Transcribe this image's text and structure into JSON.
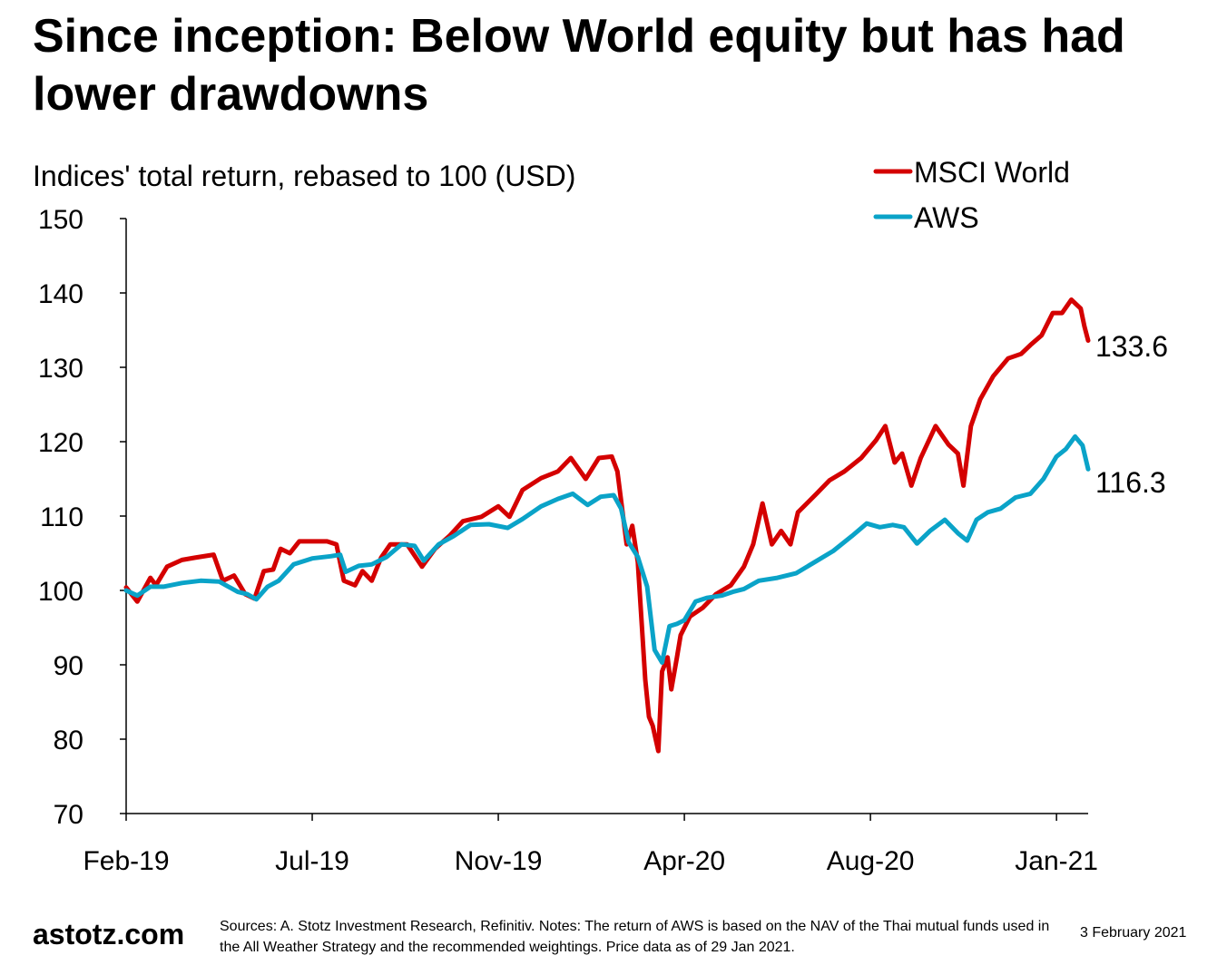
{
  "title": "Since inception: Below World equity but has had lower drawdowns",
  "subtitle": "Indices' total return, rebased to 100 (USD)",
  "footer": {
    "brand": "astotz.com",
    "note": "Sources: A. Stotz Investment Research, Refinitiv. Notes: The return of AWS is based on the NAV of the Thai mutual funds used in the All Weather Strategy and the recommended weightings. Price data as of 29 Jan 2021.",
    "date": "3 February 2021"
  },
  "chart_data": {
    "type": "line",
    "title": "Since inception: Below World equity but has had lower drawdowns",
    "ylabel": "Indices' total return, rebased to 100 (USD)",
    "xlabel": "",
    "ylim": [
      70,
      150
    ],
    "yticks": [
      70,
      80,
      90,
      100,
      110,
      120,
      130,
      140,
      150
    ],
    "xlim": [
      0,
      517
    ],
    "xticks": [
      0,
      100,
      200,
      300,
      400,
      500
    ],
    "xtick_labels": [
      "Feb-19",
      "Jul-19",
      "Nov-19",
      "Apr-20",
      "Aug-20",
      "Jan-21"
    ],
    "grid": false,
    "legend": "top-right",
    "series": [
      {
        "name": "MSCI World",
        "color": "#d40000",
        "end_label": "133.6",
        "x": [
          0,
          6,
          13,
          16,
          22,
          30,
          37,
          47,
          52,
          58,
          64,
          69,
          74,
          79,
          83,
          88,
          93,
          100,
          108,
          113,
          117,
          123,
          127,
          132,
          137,
          142,
          151,
          159,
          166,
          174,
          181,
          191,
          200,
          206,
          213,
          223,
          232,
          239,
          247,
          254,
          261,
          264,
          269,
          272,
          275,
          279,
          281,
          283,
          286,
          288,
          291,
          293,
          296,
          298,
          303,
          310,
          317,
          325,
          332,
          337,
          342,
          347,
          352,
          357,
          361,
          371,
          378,
          386,
          395,
          403,
          408,
          413,
          417,
          422,
          427,
          435,
          442,
          447,
          450,
          454,
          459,
          466,
          474,
          481,
          486,
          492,
          498,
          503,
          508,
          513,
          515,
          517
        ],
        "y": [
          100.4,
          98.5,
          101.7,
          100.7,
          103.2,
          104.1,
          104.4,
          104.8,
          101.3,
          102,
          99.5,
          98.9,
          102.6,
          102.8,
          105.6,
          105,
          106.6,
          106.6,
          106.6,
          106.2,
          101.3,
          100.7,
          102.6,
          101.3,
          104.4,
          106.2,
          106.2,
          103.2,
          105.6,
          107.4,
          109.3,
          109.9,
          111.3,
          109.9,
          113.5,
          115.1,
          116,
          117.8,
          115,
          117.8,
          118,
          116,
          106.2,
          108.7,
          103.8,
          88,
          83,
          81.8,
          78.4,
          89.1,
          91,
          86.7,
          91,
          94,
          96.5,
          97.7,
          99.5,
          100.7,
          103.2,
          106.2,
          111.7,
          106.2,
          108,
          106.2,
          110.5,
          113,
          114.8,
          116,
          117.8,
          120.2,
          122.1,
          117.2,
          118.4,
          114.1,
          117.8,
          122.1,
          119.6,
          118.4,
          114.1,
          122.1,
          125.7,
          128.8,
          131.2,
          131.8,
          133,
          134.3,
          137.3,
          137.3,
          139.1,
          137.9,
          135.5,
          133.6
        ]
      },
      {
        "name": "AWS",
        "color": "#0aa3c8",
        "end_label": "116.3",
        "x": [
          0,
          6,
          13,
          20,
          30,
          40,
          50,
          55,
          60,
          65,
          70,
          76,
          82,
          90,
          100,
          110,
          115,
          118,
          125,
          132,
          140,
          148,
          155,
          160,
          168,
          176,
          185,
          195,
          205,
          213,
          223,
          232,
          240,
          248,
          255,
          262,
          266,
          270,
          275,
          280,
          284,
          288,
          292,
          296,
          300,
          306,
          312,
          320,
          326,
          332,
          340,
          350,
          360,
          370,
          380,
          390,
          398,
          405,
          412,
          418,
          425,
          432,
          440,
          447,
          452,
          457,
          463,
          470,
          478,
          486,
          493,
          500,
          505,
          510,
          514,
          517
        ],
        "y": [
          100,
          99.3,
          100.5,
          100.5,
          101,
          101.3,
          101.2,
          100.5,
          99.8,
          99.5,
          98.8,
          100.5,
          101.3,
          103.5,
          104.3,
          104.6,
          104.8,
          102.5,
          103.3,
          103.5,
          104.5,
          106.2,
          106,
          104,
          106.2,
          107.3,
          108.8,
          108.9,
          108.4,
          109.6,
          111.3,
          112.3,
          113,
          111.5,
          112.6,
          112.8,
          111,
          106.5,
          104.5,
          100.5,
          92,
          90.3,
          95.2,
          95.5,
          96,
          98.5,
          99,
          99.3,
          99.8,
          100.2,
          101.3,
          101.7,
          102.3,
          103.8,
          105.3,
          107.3,
          109,
          108.5,
          108.8,
          108.5,
          106.3,
          108,
          109.5,
          107.7,
          106.7,
          109.5,
          110.5,
          111,
          112.5,
          113,
          115,
          118,
          119,
          120.7,
          119.5,
          116.3
        ]
      }
    ]
  }
}
